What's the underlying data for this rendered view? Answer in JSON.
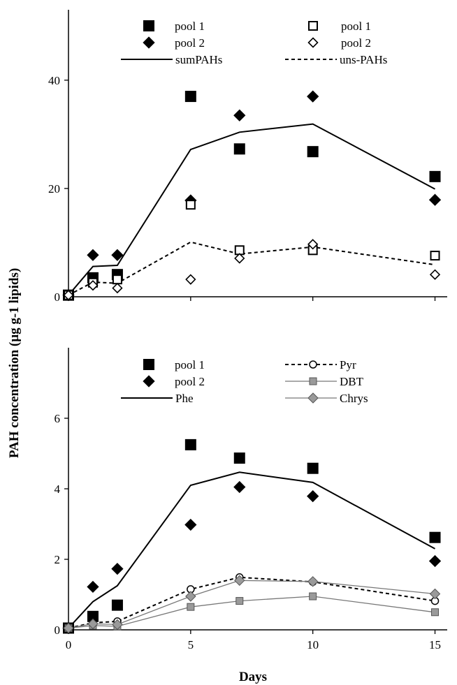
{
  "chart_data": [
    {
      "type": "scatter",
      "xlabel": "Days",
      "ylabel": "PAH concentration (µg g-1 lipids)",
      "xlim": [
        0,
        15.5
      ],
      "ylim": [
        0,
        53
      ],
      "yticks": [
        "0",
        "20",
        "40"
      ],
      "legend": {
        "placement": "top",
        "items": [
          {
            "label": "pool 1",
            "marker": "filled-square"
          },
          {
            "label": "pool 1",
            "marker": "open-square"
          },
          {
            "label": "pool 2",
            "marker": "filled-diamond"
          },
          {
            "label": "pool 2",
            "marker": "open-diamond"
          },
          {
            "label": "sumPAHs",
            "marker": "solid-line"
          },
          {
            "label": "uns-PAHs",
            "marker": "dashed-line"
          }
        ]
      },
      "series": [
        {
          "name": "sumPAHs",
          "group": "pool 1",
          "marker": "filled-square",
          "x": [
            0,
            1,
            2,
            5,
            7,
            10,
            15
          ],
          "y": [
            0.3,
            3.5,
            4.1,
            37,
            27.3,
            26.8,
            22.2
          ]
        },
        {
          "name": "sumPAHs",
          "group": "pool 2",
          "marker": "filled-diamond",
          "x": [
            0,
            1,
            2,
            5,
            7,
            10,
            15
          ],
          "y": [
            0.3,
            7.7,
            7.7,
            17.8,
            33.5,
            37,
            17.9
          ]
        },
        {
          "name": "sumPAHs",
          "marker": "solid-line",
          "x": [
            0,
            1,
            2,
            5,
            7,
            10,
            15
          ],
          "y": [
            0.3,
            5.6,
            5.8,
            27.2,
            30.4,
            31.9,
            19.9
          ]
        },
        {
          "name": "uns-PAHs",
          "group": "pool 1",
          "marker": "open-square",
          "x": [
            0,
            1,
            2,
            5,
            7,
            10,
            15
          ],
          "y": [
            0.3,
            2.6,
            3.2,
            17,
            8.6,
            8.6,
            7.6
          ]
        },
        {
          "name": "uns-PAHs",
          "group": "pool 2",
          "marker": "open-diamond",
          "x": [
            0,
            1,
            2,
            5,
            7,
            10,
            15
          ],
          "y": [
            0.3,
            2.1,
            1.6,
            3.2,
            7.1,
            9.7,
            4.1
          ]
        },
        {
          "name": "uns-PAHs",
          "marker": "dashed-line",
          "x": [
            0,
            1,
            2,
            5,
            7,
            10,
            15
          ],
          "y": [
            0.3,
            2.7,
            2.5,
            10.1,
            7.9,
            9.2,
            5.9
          ]
        }
      ]
    },
    {
      "type": "scatter",
      "xlabel": "Days",
      "xticks": [
        "0",
        "5",
        "10",
        "15"
      ],
      "xlim": [
        0,
        15.5
      ],
      "ylim": [
        0,
        8
      ],
      "yticks": [
        "0",
        "2",
        "4",
        "6"
      ],
      "legend": {
        "placement": "top",
        "items": [
          {
            "label": "pool 1",
            "marker": "filled-square"
          },
          {
            "label": "Pyr",
            "marker": "dashed-line-open-circle"
          },
          {
            "label": "pool 2",
            "marker": "filled-diamond"
          },
          {
            "label": "DBT",
            "marker": "gray-line-gray-square"
          },
          {
            "label": "Phe",
            "marker": "solid-line"
          },
          {
            "label": "Chrys",
            "marker": "gray-line-gray-diamond"
          }
        ]
      },
      "series": [
        {
          "name": "Phe",
          "group": "pool 1",
          "marker": "filled-square",
          "x": [
            0,
            1,
            2,
            5,
            7,
            10,
            15
          ],
          "y": [
            0.05,
            0.38,
            0.7,
            5.25,
            4.87,
            4.58,
            2.62
          ]
        },
        {
          "name": "Phe",
          "group": "pool 2",
          "marker": "filled-diamond",
          "x": [
            0,
            1,
            2,
            5,
            7,
            10,
            15
          ],
          "y": [
            0.05,
            1.22,
            1.73,
            2.98,
            4.05,
            3.79,
            1.95
          ]
        },
        {
          "name": "Phe",
          "marker": "solid-line",
          "x": [
            0,
            1,
            2,
            5,
            7,
            10,
            15
          ],
          "y": [
            0.05,
            0.8,
            1.25,
            4.1,
            4.47,
            4.18,
            2.3
          ]
        },
        {
          "name": "Pyr",
          "marker": "dashed-line-open-circle",
          "x": [
            0,
            1,
            2,
            5,
            7,
            10,
            15
          ],
          "y": [
            0.05,
            0.2,
            0.24,
            1.15,
            1.49,
            1.36,
            0.82
          ]
        },
        {
          "name": "DBT",
          "marker": "gray-line-gray-square",
          "x": [
            0,
            1,
            2,
            5,
            7,
            10,
            15
          ],
          "y": [
            0.05,
            0.12,
            0.1,
            0.65,
            0.82,
            0.95,
            0.5
          ]
        },
        {
          "name": "Chrys",
          "marker": "gray-line-gray-diamond",
          "x": [
            0,
            1,
            2,
            5,
            7,
            10,
            15
          ],
          "y": [
            0.05,
            0.17,
            0.15,
            0.95,
            1.4,
            1.37,
            1.02
          ]
        }
      ]
    }
  ],
  "colors": {
    "gray_fill": "#9a9a9a",
    "gray_line": "#777777",
    "black": "#000000"
  }
}
